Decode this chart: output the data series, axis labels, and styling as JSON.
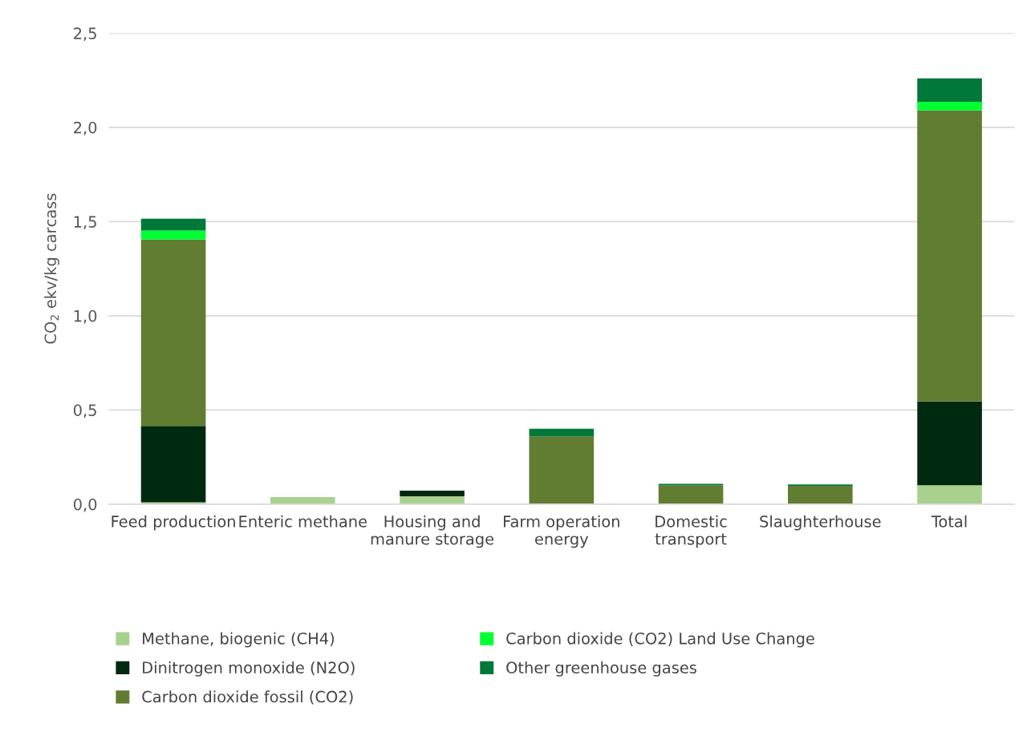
{
  "chart_data": {
    "type": "bar",
    "stacked": true,
    "ylabel": "CO$_{2}$ ekv/kg carcass",
    "categories": [
      "Feed production",
      "Enteric methane",
      "Housing and\nmanure storage",
      "Farm operation\nenergy",
      "Domestic\ntransport",
      "Slaughterhouse",
      "Total"
    ],
    "series": [
      {
        "name": "Methane, biogenic (CH4)",
        "color": "#a9d18e",
        "values": [
          0.01,
          0.038,
          0.042,
          0,
          0,
          0,
          0.1
        ]
      },
      {
        "name": "Dinitrogen monoxide (N2O)",
        "color": "#002a10",
        "values": [
          0.405,
          0,
          0.03,
          0,
          0,
          0,
          0.445
        ]
      },
      {
        "name": "Carbon dioxide fossil (CO2)",
        "color": "#607d32",
        "values": [
          0.99,
          0,
          0,
          0.36,
          0.1,
          0.097,
          1.545
        ]
      },
      {
        "name": "Carbon dioxide (CO2) Land Use Change",
        "color": "#00ff33",
        "values": [
          0.047,
          0,
          0,
          0,
          0,
          0,
          0.045
        ]
      },
      {
        "name": "Other greenhouse gases",
        "color": "#00783a",
        "values": [
          0.063,
          0,
          0,
          0.04,
          0.008,
          0.008,
          0.125
        ]
      }
    ],
    "ylim": [
      0,
      2.5
    ],
    "yticks": [
      {
        "value": 0,
        "label": "0,0"
      },
      {
        "value": 0.5,
        "label": "0,5"
      },
      {
        "value": 1,
        "label": "1,0"
      },
      {
        "value": 1.5,
        "label": "1,5"
      },
      {
        "value": 2,
        "label": "2,0"
      },
      {
        "value": 2.5,
        "label": "2,5"
      }
    ],
    "grid": "y",
    "legend": "bottom"
  }
}
